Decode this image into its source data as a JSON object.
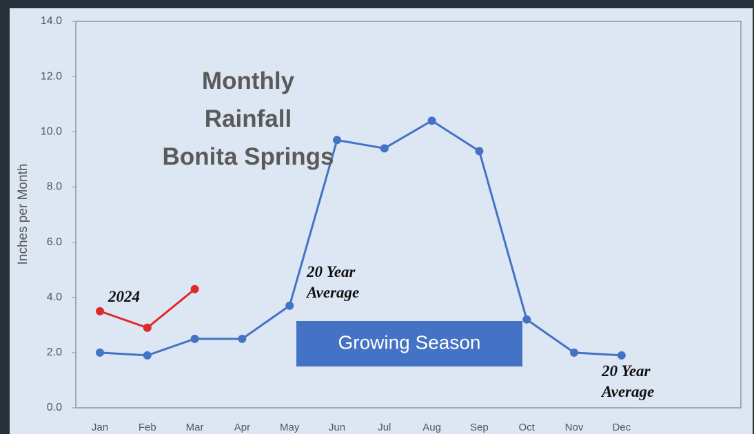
{
  "chart_data": {
    "type": "line",
    "title": "Monthly\nRainfall\nBonita Springs",
    "y_label": "Inches per Month",
    "categories": [
      "Jan",
      "Feb",
      "Mar",
      "Apr",
      "May",
      "Jun",
      "Jul",
      "Aug",
      "Sep",
      "Oct",
      "Nov",
      "Dec"
    ],
    "series": [
      {
        "name": "20 Year\nAverage",
        "color": "#4472c4",
        "values": [
          2.0,
          1.9,
          2.5,
          2.5,
          3.7,
          9.7,
          9.4,
          10.4,
          9.3,
          3.2,
          2.0,
          1.9
        ]
      },
      {
        "name": "2024",
        "color": "#e02a2a",
        "values": [
          3.5,
          2.9,
          4.3,
          null,
          null,
          null,
          null,
          null,
          null,
          null,
          null,
          null
        ]
      }
    ],
    "annotations": [
      "Growing Season"
    ],
    "ylim": [
      0,
      14
    ],
    "yticks": [
      {
        "value": 0,
        "label": "0.0"
      },
      {
        "value": 2,
        "label": "2.0"
      },
      {
        "value": 4,
        "label": "4.0"
      },
      {
        "value": 6,
        "label": "6.0"
      },
      {
        "value": 8,
        "label": "8.0"
      },
      {
        "value": 10,
        "label": "10.0"
      },
      {
        "value": 12,
        "label": "12.0"
      },
      {
        "value": 14,
        "label": "14.0"
      }
    ]
  }
}
